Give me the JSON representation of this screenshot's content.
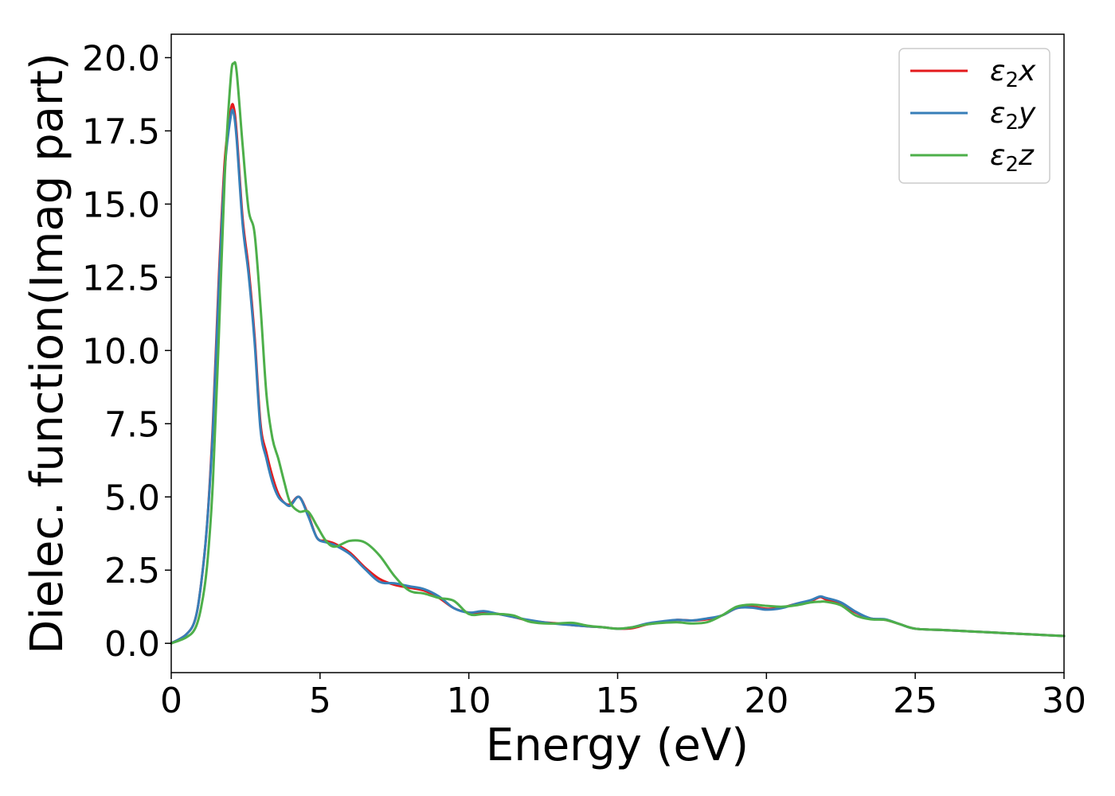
{
  "chart_data": {
    "type": "line",
    "xlabel": "Energy (eV)",
    "ylabel": "Dielec. function(Imag part)",
    "xlim": [
      0,
      30
    ],
    "ylim": [
      -1,
      20.8
    ],
    "xticks": [
      0,
      5,
      10,
      15,
      20,
      25,
      30
    ],
    "xtick_labels": [
      "0",
      "5",
      "10",
      "15",
      "20",
      "25",
      "30"
    ],
    "yticks": [
      0,
      2.5,
      5,
      7.5,
      10,
      12.5,
      15,
      17.5,
      20
    ],
    "ytick_labels": [
      "0.0",
      "2.5",
      "5.0",
      "7.5",
      "10.0",
      "12.5",
      "15.0",
      "17.5",
      "20.0"
    ],
    "grid": false,
    "legend_position": "top-right",
    "series": [
      {
        "name": "ε₂x",
        "legend": {
          "base": "ε",
          "sub": "2",
          "axis": "x"
        },
        "color": "#e41a1c",
        "x": [
          0,
          0.5,
          0.8,
          1.0,
          1.2,
          1.4,
          1.6,
          1.8,
          2.0,
          2.1,
          2.2,
          2.4,
          2.6,
          2.8,
          3.0,
          3.2,
          3.4,
          3.6,
          3.8,
          4.0,
          4.3,
          4.6,
          4.9,
          5.2,
          5.5,
          6.0,
          6.5,
          7.0,
          7.5,
          8.0,
          8.5,
          9.0,
          9.5,
          10.0,
          10.5,
          11.0,
          11.5,
          12.0,
          12.5,
          13.0,
          13.5,
          14.0,
          14.5,
          15.0,
          15.5,
          16.0,
          16.5,
          17.0,
          17.5,
          18.0,
          18.5,
          19.0,
          19.5,
          20.0,
          20.5,
          21.0,
          21.5,
          21.8,
          22.0,
          22.5,
          23.0,
          23.5,
          24.0,
          24.5,
          25.0,
          26.0,
          27.0,
          28.0,
          29.0,
          30.0
        ],
        "values": [
          0,
          0.3,
          0.8,
          2.0,
          4.0,
          7.5,
          12.5,
          16.5,
          18.2,
          18.3,
          17.4,
          14.5,
          12.8,
          10.5,
          7.5,
          6.5,
          5.7,
          5.1,
          4.8,
          4.75,
          5.0,
          4.4,
          3.6,
          3.5,
          3.4,
          3.1,
          2.6,
          2.2,
          2.0,
          1.9,
          1.8,
          1.55,
          1.2,
          1.05,
          1.05,
          1.0,
          0.9,
          0.78,
          0.72,
          0.68,
          0.62,
          0.58,
          0.55,
          0.5,
          0.52,
          0.65,
          0.72,
          0.8,
          0.78,
          0.82,
          0.95,
          1.2,
          1.25,
          1.18,
          1.22,
          1.35,
          1.45,
          1.58,
          1.5,
          1.35,
          1.05,
          0.85,
          0.8,
          0.65,
          0.5,
          0.45,
          0.4,
          0.35,
          0.3,
          0.25
        ]
      },
      {
        "name": "ε₂y",
        "legend": {
          "base": "ε",
          "sub": "2",
          "axis": "y"
        },
        "color": "#377eb8",
        "x": [
          0,
          0.5,
          0.8,
          1.0,
          1.2,
          1.4,
          1.6,
          1.8,
          2.0,
          2.1,
          2.2,
          2.4,
          2.6,
          2.8,
          3.0,
          3.2,
          3.4,
          3.6,
          3.8,
          4.0,
          4.3,
          4.6,
          4.9,
          5.2,
          5.5,
          6.0,
          6.5,
          7.0,
          7.5,
          8.0,
          8.5,
          9.0,
          9.5,
          10.0,
          10.5,
          11.0,
          11.5,
          12.0,
          12.5,
          13.0,
          13.5,
          14.0,
          14.5,
          15.0,
          15.5,
          16.0,
          16.5,
          17.0,
          17.5,
          18.0,
          18.5,
          19.0,
          19.5,
          20.0,
          20.5,
          21.0,
          21.5,
          21.8,
          22.0,
          22.5,
          23.0,
          23.5,
          24.0,
          24.5,
          25.0,
          26.0,
          27.0,
          28.0,
          29.0,
          30.0
        ],
        "values": [
          0,
          0.3,
          0.8,
          2.0,
          4.0,
          7.3,
          12.2,
          16.2,
          18.0,
          18.1,
          17.2,
          14.3,
          12.6,
          10.3,
          7.3,
          6.3,
          5.5,
          5.0,
          4.8,
          4.7,
          5.0,
          4.35,
          3.6,
          3.45,
          3.35,
          3.05,
          2.55,
          2.1,
          2.05,
          1.95,
          1.85,
          1.6,
          1.2,
          1.05,
          1.1,
          1.0,
          0.9,
          0.8,
          0.72,
          0.66,
          0.62,
          0.58,
          0.55,
          0.5,
          0.55,
          0.68,
          0.75,
          0.8,
          0.78,
          0.85,
          0.95,
          1.2,
          1.22,
          1.15,
          1.2,
          1.35,
          1.48,
          1.6,
          1.55,
          1.4,
          1.08,
          0.85,
          0.82,
          0.65,
          0.5,
          0.45,
          0.4,
          0.35,
          0.3,
          0.25
        ]
      },
      {
        "name": "ε₂z",
        "legend": {
          "base": "ε",
          "sub": "2",
          "axis": "z"
        },
        "color": "#4daf4a",
        "x": [
          0,
          0.5,
          0.8,
          1.0,
          1.2,
          1.4,
          1.6,
          1.8,
          2.0,
          2.1,
          2.2,
          2.4,
          2.6,
          2.8,
          3.0,
          3.2,
          3.4,
          3.6,
          3.8,
          4.0,
          4.3,
          4.6,
          4.9,
          5.2,
          5.5,
          6.0,
          6.5,
          7.0,
          7.5,
          8.0,
          8.5,
          9.0,
          9.5,
          10.0,
          10.5,
          11.0,
          11.5,
          12.0,
          12.5,
          13.0,
          13.5,
          14.0,
          14.5,
          15.0,
          15.5,
          16.0,
          16.5,
          17.0,
          17.5,
          18.0,
          18.5,
          19.0,
          19.5,
          20.0,
          20.5,
          21.0,
          21.5,
          21.8,
          22.0,
          22.5,
          23.0,
          23.5,
          24.0,
          24.5,
          25.0,
          26.0,
          27.0,
          28.0,
          29.0,
          30.0
        ],
        "values": [
          0,
          0.2,
          0.5,
          1.2,
          2.6,
          5.5,
          10.5,
          16.0,
          19.3,
          19.8,
          19.5,
          17.0,
          14.8,
          14.0,
          11.5,
          8.5,
          7.0,
          6.3,
          5.5,
          4.8,
          4.5,
          4.5,
          4.0,
          3.5,
          3.3,
          3.5,
          3.45,
          3.0,
          2.3,
          1.8,
          1.7,
          1.55,
          1.45,
          1.0,
          1.0,
          1.0,
          0.95,
          0.75,
          0.68,
          0.68,
          0.7,
          0.6,
          0.55,
          0.5,
          0.55,
          0.65,
          0.7,
          0.72,
          0.68,
          0.72,
          0.95,
          1.25,
          1.32,
          1.28,
          1.25,
          1.3,
          1.4,
          1.42,
          1.42,
          1.3,
          0.95,
          0.82,
          0.8,
          0.65,
          0.5,
          0.45,
          0.4,
          0.35,
          0.3,
          0.25
        ]
      }
    ]
  }
}
